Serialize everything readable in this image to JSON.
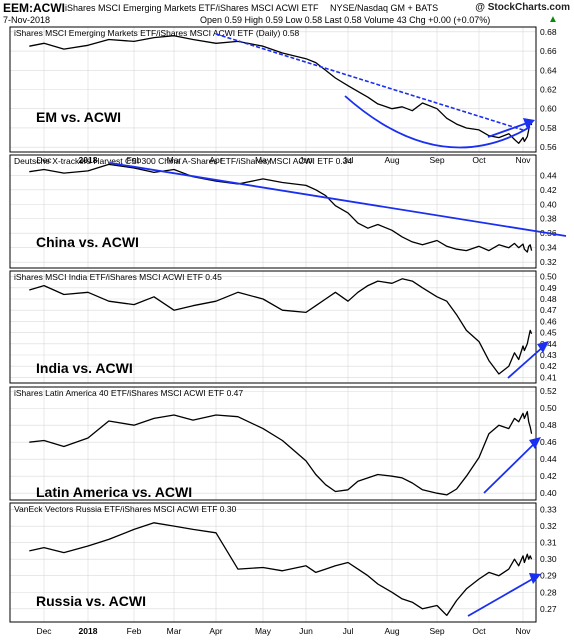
{
  "header": {
    "symbol": "EEM:ACWI",
    "description": "iShares MSCI Emerging Markets ETF/iShares MSCI ACWI ETF",
    "exchange": "NYSE/Nasdaq GM + BATS",
    "date": "7-Nov-2018",
    "ohlc": "Open 0.59  High 0.59  Low 0.58  Last 0.58  Volume 43  Chg +0.00 (+0.07%)",
    "ohlc_arrow": "▲",
    "watermark": "@ StockCharts.com"
  },
  "x_ticks": [
    "Dec",
    "2018",
    "Feb",
    "Mar",
    "Apr",
    "May",
    "Jun",
    "Jul",
    "Aug",
    "Sep",
    "Oct",
    "Nov"
  ],
  "colors": {
    "price": "#000000",
    "annotation": "#1a2ff0",
    "grid": "#d9d9d9",
    "frame": "#000000",
    "label": "#000000"
  },
  "chart_data": [
    {
      "type": "line",
      "series": [
        {
          "name": "iShares MSCI Emerging Markets ETF/iShares MSCI ACWI ETF (Daily) 0.58",
          "values": [
            0.665,
            0.668,
            0.662,
            0.666,
            0.672,
            0.67,
            0.674,
            0.676,
            0.672,
            0.668,
            0.67,
            0.665,
            0.658,
            0.652,
            0.648,
            0.64,
            0.632,
            0.624,
            0.618,
            0.612,
            0.605,
            0.6,
            0.602,
            0.598,
            0.606,
            0.6,
            0.59,
            0.584,
            0.58,
            0.578,
            0.572,
            0.57,
            0.574,
            0.568,
            0.564,
            0.57,
            0.566,
            0.571,
            0.578,
            0.588,
            0.583
          ]
        }
      ],
      "x": [
        "Nov-20",
        "Dec-1",
        "Dec-15",
        "Jan-1",
        "Jan-15",
        "Feb-1",
        "Feb-15",
        "Mar-1",
        "Mar-15",
        "Apr-1",
        "Apr-15",
        "May-1",
        "May-15",
        "Jun-1",
        "Jun-8",
        "Jun-15",
        "Jun-22",
        "Jul-1",
        "Jul-8",
        "Jul-15",
        "Jul-22",
        "Aug-1",
        "Aug-8",
        "Aug-15",
        "Aug-22",
        "Sep-1",
        "Sep-8",
        "Sep-15",
        "Sep-22",
        "Oct-1",
        "Oct-8",
        "Oct-15",
        "Oct-22",
        "Oct-26",
        "Oct-29",
        "Nov-1",
        "Nov-2",
        "Nov-4",
        "Nov-5",
        "Nov-6",
        "Nov-7"
      ],
      "y_ticks": [
        0.56,
        0.58,
        0.6,
        0.62,
        0.64,
        0.66,
        0.68
      ],
      "ylim": [
        0.555,
        0.685
      ],
      "label": "EM vs. ACWI",
      "annotations": [
        "dashed-downtrend-line",
        "blue-arc-bottom",
        "blue-arrow-up"
      ]
    },
    {
      "type": "line",
      "series": [
        {
          "name": "Deutsche X-trackers Harvest CSI 300 China A-Shares ETF/iShares MSCI ACWI ETF 0.34",
          "values": [
            0.445,
            0.448,
            0.443,
            0.446,
            0.455,
            0.45,
            0.444,
            0.448,
            0.438,
            0.432,
            0.428,
            0.435,
            0.43,
            0.426,
            0.42,
            0.412,
            0.398,
            0.388,
            0.374,
            0.367,
            0.372,
            0.364,
            0.355,
            0.348,
            0.344,
            0.35,
            0.342,
            0.338,
            0.336,
            0.342,
            0.336,
            0.344,
            0.34,
            0.346,
            0.34,
            0.345,
            0.338,
            0.334,
            0.342,
            0.344,
            0.336
          ]
        }
      ],
      "x": [
        "Nov-20",
        "Dec-1",
        "Dec-15",
        "Jan-1",
        "Jan-15",
        "Feb-1",
        "Feb-15",
        "Mar-1",
        "Mar-15",
        "Apr-1",
        "Apr-15",
        "May-1",
        "May-15",
        "Jun-1",
        "Jun-8",
        "Jun-15",
        "Jun-22",
        "Jul-1",
        "Jul-8",
        "Jul-15",
        "Jul-22",
        "Aug-1",
        "Aug-8",
        "Aug-15",
        "Aug-22",
        "Sep-1",
        "Sep-8",
        "Sep-15",
        "Sep-22",
        "Oct-1",
        "Oct-8",
        "Oct-15",
        "Oct-22",
        "Oct-26",
        "Oct-29",
        "Nov-1",
        "Nov-2",
        "Nov-4",
        "Nov-5",
        "Nov-6",
        "Nov-7"
      ],
      "y_ticks": [
        0.32,
        0.34,
        0.36,
        0.38,
        0.4,
        0.42,
        0.44
      ],
      "ylim": [
        0.312,
        0.468
      ],
      "label": "China vs. ACWI",
      "annotations": [
        "blue-downtrend-line"
      ]
    },
    {
      "type": "line",
      "series": [
        {
          "name": "iShares MSCI India ETF/iShares MSCI ACWI ETF 0.45",
          "values": [
            0.488,
            0.492,
            0.484,
            0.486,
            0.478,
            0.475,
            0.482,
            0.47,
            0.474,
            0.478,
            0.486,
            0.48,
            0.47,
            0.468,
            0.474,
            0.48,
            0.486,
            0.478,
            0.486,
            0.492,
            0.496,
            0.494,
            0.498,
            0.496,
            0.49,
            0.482,
            0.478,
            0.466,
            0.452,
            0.442,
            0.425,
            0.413,
            0.42,
            0.432,
            0.426,
            0.438,
            0.434,
            0.44,
            0.446,
            0.452,
            0.449
          ]
        }
      ],
      "x": [
        "Nov-20",
        "Dec-1",
        "Dec-15",
        "Jan-1",
        "Jan-15",
        "Feb-1",
        "Feb-15",
        "Mar-1",
        "Mar-15",
        "Apr-1",
        "Apr-15",
        "May-1",
        "May-15",
        "Jun-1",
        "Jun-8",
        "Jun-15",
        "Jun-22",
        "Jul-1",
        "Jul-8",
        "Jul-15",
        "Jul-22",
        "Aug-1",
        "Aug-8",
        "Aug-15",
        "Aug-22",
        "Sep-1",
        "Sep-8",
        "Sep-15",
        "Sep-22",
        "Oct-1",
        "Oct-8",
        "Oct-15",
        "Oct-22",
        "Oct-26",
        "Oct-29",
        "Nov-1",
        "Nov-2",
        "Nov-4",
        "Nov-5",
        "Nov-6",
        "Nov-7"
      ],
      "y_ticks": [
        0.41,
        0.42,
        0.43,
        0.44,
        0.45,
        0.46,
        0.47,
        0.48,
        0.49,
        0.5
      ],
      "ylim": [
        0.405,
        0.505
      ],
      "label": "India vs. ACWI",
      "annotations": [
        "blue-arrow-up"
      ]
    },
    {
      "type": "line",
      "series": [
        {
          "name": "iShares Latin America 40 ETF/iShares MSCI ACWI ETF 0.47",
          "values": [
            0.46,
            0.462,
            0.455,
            0.465,
            0.485,
            0.48,
            0.488,
            0.492,
            0.486,
            0.492,
            0.49,
            0.476,
            0.462,
            0.438,
            0.422,
            0.41,
            0.402,
            0.404,
            0.414,
            0.418,
            0.422,
            0.42,
            0.418,
            0.412,
            0.404,
            0.4,
            0.398,
            0.405,
            0.42,
            0.442,
            0.47,
            0.48,
            0.476,
            0.488,
            0.484,
            0.494,
            0.488,
            0.496,
            0.484,
            0.478,
            0.47
          ]
        }
      ],
      "x": [
        "Nov-20",
        "Dec-1",
        "Dec-15",
        "Jan-1",
        "Jan-15",
        "Feb-1",
        "Feb-15",
        "Mar-1",
        "Mar-15",
        "Apr-1",
        "Apr-15",
        "May-1",
        "May-15",
        "Jun-1",
        "Jun-8",
        "Jun-15",
        "Jun-22",
        "Jul-1",
        "Jul-8",
        "Jul-15",
        "Jul-22",
        "Aug-1",
        "Aug-8",
        "Aug-15",
        "Aug-22",
        "Sep-1",
        "Sep-8",
        "Sep-15",
        "Sep-22",
        "Oct-1",
        "Oct-8",
        "Oct-15",
        "Oct-22",
        "Oct-26",
        "Oct-29",
        "Nov-1",
        "Nov-2",
        "Nov-4",
        "Nov-5",
        "Nov-6",
        "Nov-7"
      ],
      "y_ticks": [
        0.4,
        0.42,
        0.44,
        0.46,
        0.48,
        0.5,
        0.52
      ],
      "ylim": [
        0.392,
        0.525
      ],
      "label": "Latin America vs. ACWI",
      "annotations": [
        "blue-arrow-up"
      ]
    },
    {
      "type": "line",
      "series": [
        {
          "name": "VanEck Vectors Russia ETF/iShares MSCI ACWI ETF 0.30",
          "values": [
            0.305,
            0.307,
            0.304,
            0.308,
            0.312,
            0.318,
            0.322,
            0.32,
            0.318,
            0.316,
            0.294,
            0.295,
            0.293,
            0.296,
            0.292,
            0.294,
            0.296,
            0.298,
            0.294,
            0.29,
            0.285,
            0.28,
            0.276,
            0.274,
            0.27,
            0.272,
            0.266,
            0.275,
            0.282,
            0.288,
            0.292,
            0.29,
            0.294,
            0.3,
            0.296,
            0.302,
            0.298,
            0.303,
            0.3,
            0.302,
            0.3
          ]
        }
      ],
      "x": [
        "Nov-20",
        "Dec-1",
        "Dec-15",
        "Jan-1",
        "Jan-15",
        "Feb-1",
        "Feb-15",
        "Mar-1",
        "Mar-15",
        "Apr-1",
        "Apr-15",
        "May-1",
        "May-15",
        "Jun-1",
        "Jun-8",
        "Jun-15",
        "Jun-22",
        "Jul-1",
        "Jul-8",
        "Jul-15",
        "Jul-22",
        "Aug-1",
        "Aug-8",
        "Aug-15",
        "Aug-22",
        "Sep-1",
        "Sep-8",
        "Sep-15",
        "Sep-22",
        "Oct-1",
        "Oct-8",
        "Oct-15",
        "Oct-22",
        "Oct-26",
        "Oct-29",
        "Nov-1",
        "Nov-2",
        "Nov-4",
        "Nov-5",
        "Nov-6",
        "Nov-7"
      ],
      "y_ticks": [
        0.27,
        0.28,
        0.29,
        0.3,
        0.31,
        0.32,
        0.33
      ],
      "ylim": [
        0.262,
        0.334
      ],
      "label": "Russia vs. ACWI",
      "annotations": [
        "blue-arrow-up"
      ]
    }
  ]
}
